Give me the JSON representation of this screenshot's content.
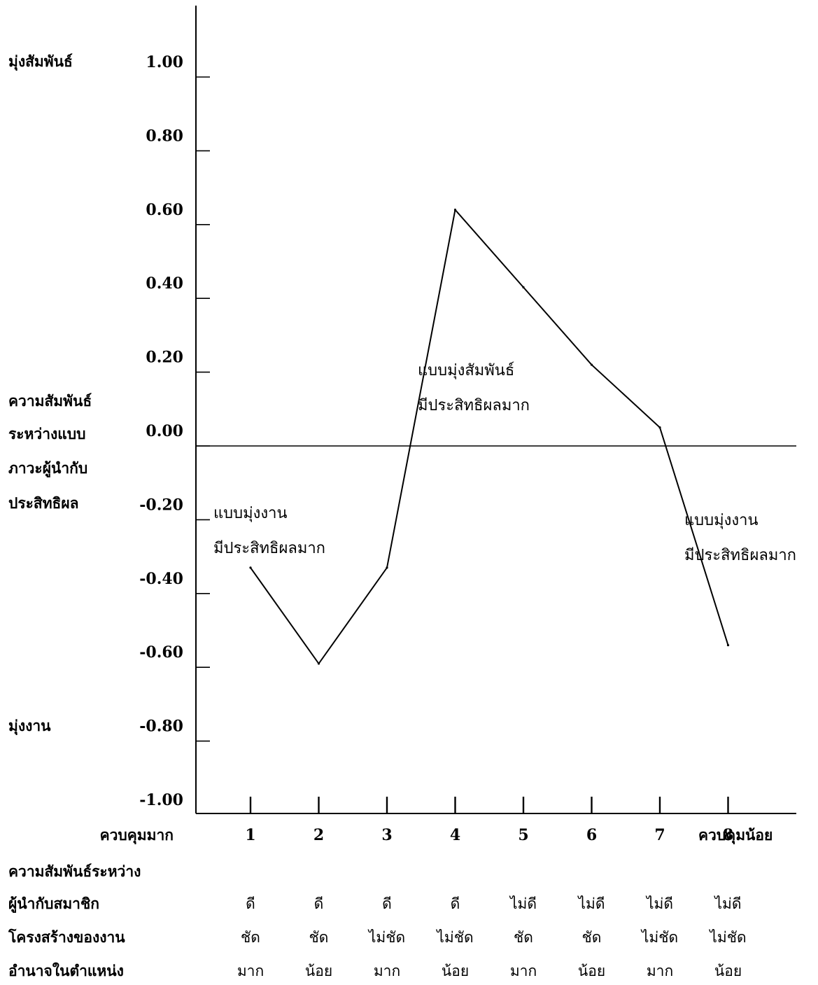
{
  "chart_data": {
    "type": "line",
    "x": [
      1,
      2,
      3,
      4,
      5,
      6,
      7,
      8
    ],
    "series": [
      {
        "values": [
          -0.33,
          -0.59,
          -0.33,
          0.64,
          0.43,
          0.22,
          0.05,
          -0.54
        ]
      }
    ],
    "ylim": [
      -1.0,
      1.15
    ],
    "xlim": [
      0.2,
      9.0
    ],
    "y_ticks": [
      "1.00",
      "0.80",
      "0.60",
      "0.40",
      "0.20",
      "0.00",
      "-0.20",
      "-0.40",
      "-0.60",
      "-0.80",
      "-1.00"
    ],
    "x_ticks": [
      "1",
      "2",
      "3",
      "4",
      "5",
      "6",
      "7",
      "8"
    ],
    "reference_line_y": 0.0,
    "grid": false,
    "legend": "none",
    "line_color": "#000000",
    "y_axis_side_labels": {
      "top": "มุ่งสัมพันธ์",
      "middle": [
        "ความสัมพันธ์",
        "ระหว่างแบบ",
        "ภาวะผู้นำกับ",
        "ประสิทธิผล"
      ],
      "bottom": "มุ่งงาน"
    },
    "x_axis_end_labels": {
      "left": "ควบคุมมาก",
      "right": "ควบคุมน้อย"
    },
    "annotations": [
      {
        "lines": [
          "แบบมุ่งงาน",
          "มีประสิทธิผลมาก"
        ]
      },
      {
        "lines": [
          "แบบมุ่งสัมพันธ์",
          "มีประสิทธิผลมาก"
        ]
      },
      {
        "lines": [
          "แบบมุ่งงาน",
          "มีประสิทธิผลมาก"
        ]
      }
    ]
  },
  "bottom_table": {
    "header_line": "ความสัมพันธ์ระหว่าง",
    "rows": [
      {
        "label": "ผู้นำกับสมาชิก",
        "cells": [
          "ดี",
          "ดี",
          "ดี",
          "ดี",
          "ไม่ดี",
          "ไม่ดี",
          "ไม่ดี",
          "ไม่ดี"
        ]
      },
      {
        "label": "โครงสร้างของงาน",
        "cells": [
          "ชัด",
          "ชัด",
          "ไม่ชัด",
          "ไม่ชัด",
          "ชัด",
          "ชัด",
          "ไม่ชัด",
          "ไม่ชัด"
        ]
      },
      {
        "label": "อำนาจในตำแหน่ง",
        "cells": [
          "มาก",
          "น้อย",
          "มาก",
          "น้อย",
          "มาก",
          "น้อย",
          "มาก",
          "น้อย"
        ]
      }
    ]
  }
}
